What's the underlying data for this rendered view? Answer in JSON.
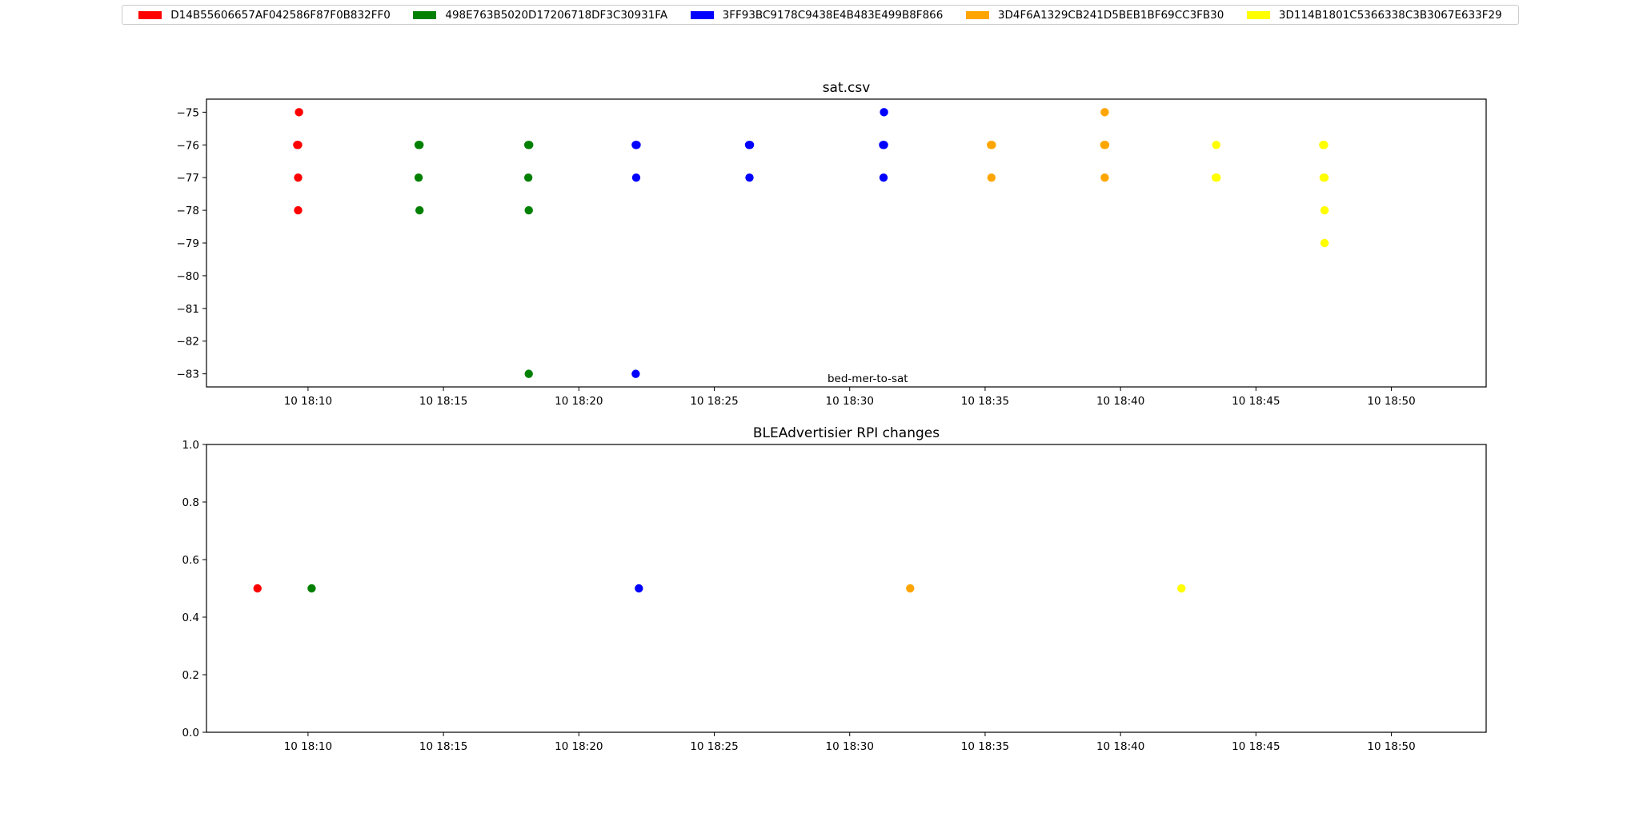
{
  "colors": {
    "red": "#ff0000",
    "green": "#008000",
    "blue": "#0000ff",
    "orange": "#ffa500",
    "yellow": "#ffff00"
  },
  "legend": [
    {
      "label": "D14B55606657AF042586F87F0B832FF0",
      "color": "#ff0000"
    },
    {
      "label": "498E763B5020D17206718DF3C30931FA",
      "color": "#008000"
    },
    {
      "label": "3FF93BC9178C9438E4B483E499B8F866",
      "color": "#0000ff"
    },
    {
      "label": "3D4F6A1329CB241D5BEB1BF69CC3FB30",
      "color": "#ffa500"
    },
    {
      "label": "3D114B1801C5366338C3B3067E633F29",
      "color": "#ffff00"
    }
  ],
  "chart_data": [
    {
      "type": "scatter",
      "title": "sat.csv",
      "annotation": "bed-mer-to-sat",
      "xlabel": "",
      "ylabel": "",
      "xlim": [
        "18:06:15",
        "18:53:30"
      ],
      "ylim": [
        -83.4,
        -74.6
      ],
      "xticks": [
        "10 18:10",
        "10 18:15",
        "10 18:20",
        "10 18:25",
        "10 18:30",
        "10 18:35",
        "10 18:40",
        "10 18:45",
        "10 18:50"
      ],
      "yticks": [
        "−75",
        "−76",
        "−77",
        "−78",
        "−79",
        "−80",
        "−81",
        "−82",
        "−83"
      ],
      "ytick_values": [
        -75,
        -76,
        -77,
        -78,
        -79,
        -80,
        -81,
        -82,
        -83
      ],
      "grid": false,
      "series": [
        {
          "name": "D14B55606657AF042586F87F0B832FF0",
          "color": "#ff0000",
          "points": [
            [
              "18:09:40",
              -75
            ],
            [
              "18:09:38",
              -76
            ],
            [
              "18:09:36",
              -76
            ],
            [
              "18:09:38",
              -77
            ],
            [
              "18:09:38",
              -78
            ]
          ]
        },
        {
          "name": "498E763B5020D17206718DF3C30931FA",
          "color": "#008000",
          "points": [
            [
              "18:14:05",
              -76
            ],
            [
              "18:14:07",
              -76
            ],
            [
              "18:14:05",
              -77
            ],
            [
              "18:14:07",
              -78
            ],
            [
              "18:18:08",
              -76
            ],
            [
              "18:18:10",
              -76
            ],
            [
              "18:18:08",
              -77
            ],
            [
              "18:18:09",
              -78
            ],
            [
              "18:18:09",
              -83
            ]
          ]
        },
        {
          "name": "3FF93BC9178C9438E4B483E499B8F866",
          "color": "#0000ff",
          "points": [
            [
              "18:22:06",
              -76
            ],
            [
              "18:22:08",
              -76
            ],
            [
              "18:22:07",
              -77
            ],
            [
              "18:22:06",
              -83
            ],
            [
              "18:26:17",
              -76
            ],
            [
              "18:26:19",
              -76
            ],
            [
              "18:26:18",
              -77
            ],
            [
              "18:31:16",
              -75
            ],
            [
              "18:31:14",
              -76
            ],
            [
              "18:31:16",
              -76
            ],
            [
              "18:31:15",
              -77
            ]
          ]
        },
        {
          "name": "3D4F6A1329CB241D5BEB1BF69CC3FB30",
          "color": "#ffa500",
          "points": [
            [
              "18:35:13",
              -76
            ],
            [
              "18:35:15",
              -76
            ],
            [
              "18:35:14",
              -77
            ],
            [
              "18:39:25",
              -75
            ],
            [
              "18:39:24",
              -76
            ],
            [
              "18:39:26",
              -76
            ],
            [
              "18:39:25",
              -77
            ]
          ]
        },
        {
          "name": "3D114B1801C5366338C3B3067E633F29",
          "color": "#ffff00",
          "points": [
            [
              "18:43:32",
              -76
            ],
            [
              "18:43:31",
              -77
            ],
            [
              "18:43:33",
              -77
            ],
            [
              "18:47:29",
              -76
            ],
            [
              "18:47:31",
              -76
            ],
            [
              "18:47:30",
              -77
            ],
            [
              "18:47:32",
              -77
            ],
            [
              "18:47:32",
              -78
            ],
            [
              "18:47:32",
              -79
            ]
          ]
        }
      ]
    },
    {
      "type": "scatter",
      "title": "BLEAdvertisier RPI changes",
      "xlabel": "",
      "ylabel": "",
      "xlim": [
        "18:06:15",
        "18:53:30"
      ],
      "ylim": [
        0.0,
        1.0
      ],
      "xticks": [
        "10 18:10",
        "10 18:15",
        "10 18:20",
        "10 18:25",
        "10 18:30",
        "10 18:35",
        "10 18:40",
        "10 18:45",
        "10 18:50"
      ],
      "yticks": [
        "0.0",
        "0.2",
        "0.4",
        "0.6",
        "0.8",
        "1.0"
      ],
      "ytick_values": [
        0.0,
        0.2,
        0.4,
        0.6,
        0.8,
        1.0
      ],
      "grid": false,
      "series": [
        {
          "name": "D14B55606657AF042586F87F0B832FF0",
          "color": "#ff0000",
          "points": [
            [
              "18:08:08",
              0.5
            ]
          ]
        },
        {
          "name": "498E763B5020D17206718DF3C30931FA",
          "color": "#008000",
          "points": [
            [
              "18:10:08",
              0.5
            ]
          ]
        },
        {
          "name": "3FF93BC9178C9438E4B483E499B8F866",
          "color": "#0000ff",
          "points": [
            [
              "18:22:13",
              0.5
            ]
          ]
        },
        {
          "name": "3D4F6A1329CB241D5BEB1BF69CC3FB30",
          "color": "#ffa500",
          "points": [
            [
              "18:32:14",
              0.5
            ]
          ]
        },
        {
          "name": "3D114B1801C5366338C3B3067E633F29",
          "color": "#ffff00",
          "points": [
            [
              "18:42:15",
              0.5
            ]
          ]
        }
      ]
    }
  ]
}
